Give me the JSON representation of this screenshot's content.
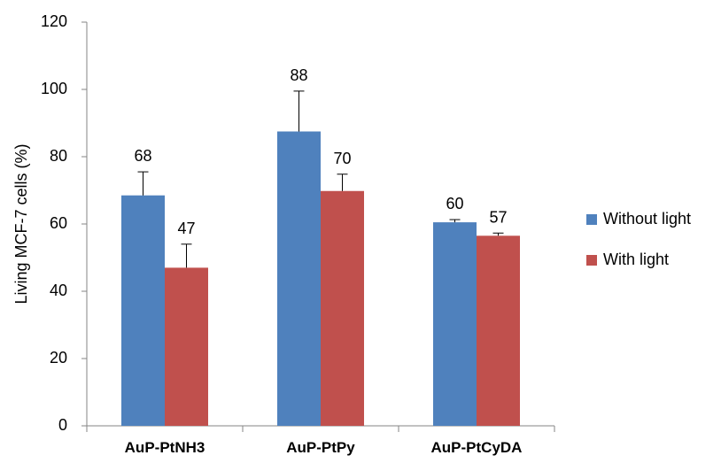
{
  "chart_data": {
    "type": "bar",
    "title": "",
    "xlabel": "",
    "ylabel": "Living MCF-7 cells (%)",
    "ylim": [
      0,
      120
    ],
    "yticks": [
      0,
      20,
      40,
      60,
      80,
      100,
      120
    ],
    "grid": false,
    "legend_position": "right",
    "categories": [
      "AuP-PtNH3",
      "AuP-PtPy",
      "AuP-PtCyDA"
    ],
    "series": [
      {
        "name": "Without light",
        "color": "#4F81BD",
        "values": [
          68.5,
          87.5,
          60.5
        ],
        "error": [
          7,
          12,
          0.8
        ],
        "labels": [
          "68",
          "88",
          "60"
        ]
      },
      {
        "name": "With light",
        "color": "#C0504D",
        "values": [
          47,
          69.8,
          56.5
        ],
        "error": [
          7,
          5,
          0.8
        ],
        "labels": [
          "47",
          "70",
          "57"
        ]
      }
    ]
  }
}
